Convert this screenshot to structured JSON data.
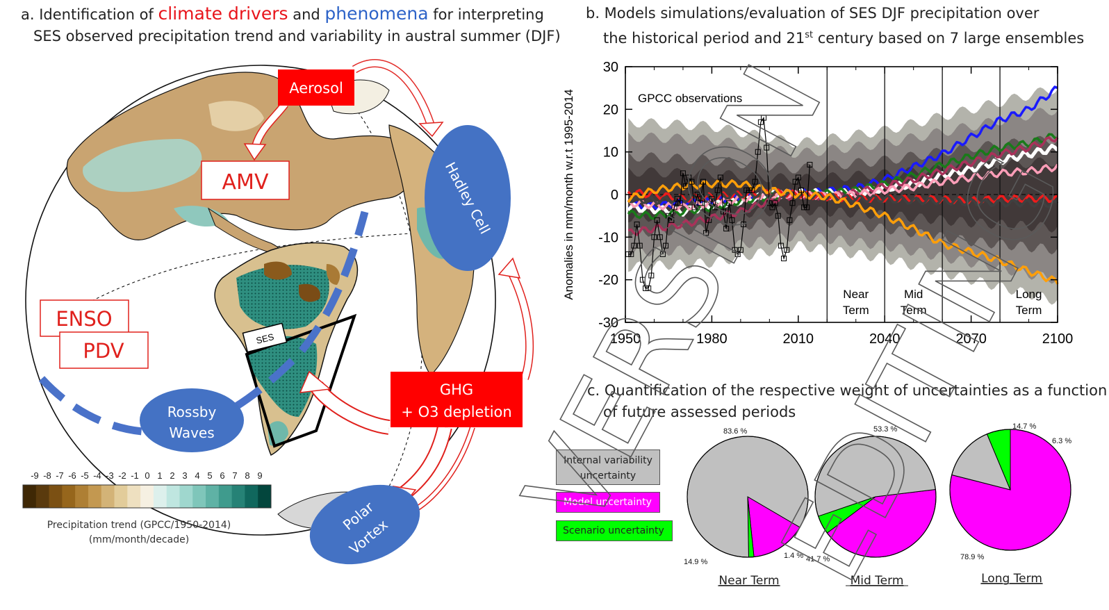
{
  "panel_a": {
    "title_line1_pre": "a. Identification of ",
    "title_drivers": "climate drivers",
    "title_mid": " and ",
    "title_phenomena": "phenomena",
    "title_line1_post": " for interpreting",
    "title_line2": "SES observed precipitation trend and variability in austral summer (DJF)",
    "drivers": [
      "Aerosol",
      "AMV",
      "ENSO",
      "PDV",
      "GHG",
      "+ O3 depletion"
    ],
    "phenomena": [
      "Hadley Cell",
      "Rossby",
      "Waves",
      "Polar",
      "Vortex"
    ],
    "region_label": "SES",
    "colorbar": {
      "ticks": [
        "-9",
        "-8",
        "-7",
        "-6",
        "-5",
        "-4",
        "-3",
        "-2",
        "-1",
        "0",
        "1",
        "2",
        "3",
        "4",
        "5",
        "6",
        "7",
        "8",
        "9"
      ],
      "colors": [
        "#3f2805",
        "#5a3a0d",
        "#7b5013",
        "#96661c",
        "#ae7f34",
        "#c39850",
        "#d3b377",
        "#e2cc9a",
        "#eee0c0",
        "#f6f0e2",
        "#ddf0ec",
        "#bfe6e0",
        "#9fd7ce",
        "#7fc6ba",
        "#5fb2a5",
        "#3f9b8d",
        "#268276",
        "#10675d",
        "#03463d"
      ],
      "label1": "Precipitation trend (GPCC/1950-2014)",
      "label2": "(mm/month/decade)"
    }
  },
  "panel_b": {
    "title_line1": "b. Models simulations/evaluation of SES DJF precipitation over",
    "title_line2_pre": "the historical period and 21",
    "title_line2_sup": "st",
    "title_line2_post": " century based on 7 large ensembles",
    "obs_label": "GPCC observations",
    "ylabel": "Anomalies in mm/month w.r.t 1995-2014",
    "term_labels": [
      [
        "Near",
        "Term"
      ],
      [
        "Mid",
        "Term"
      ],
      [
        "Long",
        "Term"
      ]
    ]
  },
  "panel_c": {
    "title_line1": "c. Quantification of the respective weight of uncertainties as a function",
    "title_line2": "of future assessed periods",
    "legend": [
      "Internal variability",
      "uncertainty",
      "Model uncertainty",
      "Scenario uncertainty"
    ],
    "pies": [
      {
        "name": "Near Term",
        "internal": 83.6,
        "model": 14.9,
        "scenario": 1.4,
        "labels": [
          "83.6  %",
          "14.9  %",
          "1.4  %"
        ]
      },
      {
        "name": "Mid Term",
        "internal": 53.3,
        "model": 41.7,
        "scenario": 5.0,
        "labels": [
          "53.3  %",
          "41.7  %"
        ]
      },
      {
        "name": "Long Term",
        "internal": 14.7,
        "model": 78.9,
        "scenario": 6.3,
        "labels": [
          "14.7  %",
          "78.9  %",
          "6.3  %"
        ]
      }
    ],
    "colors": {
      "internal": "#c0c0c0",
      "model": "#ff00ff",
      "scenario": "#00ff00"
    }
  },
  "chart_data": {
    "type": "line",
    "title": "GPCC observations",
    "xlabel": "",
    "ylabel": "Anomalies in mm/month w.r.t 1995-2014",
    "xlim": [
      1950,
      2100
    ],
    "ylim": [
      -30,
      30
    ],
    "xticks": [
      1950,
      1980,
      2010,
      2040,
      2070,
      2100
    ],
    "yticks": [
      -30,
      -20,
      -10,
      0,
      10,
      20,
      30
    ],
    "grid": false,
    "vlines": [
      2020,
      2040,
      2060,
      2080
    ],
    "observations": {
      "x": [
        1951,
        1952,
        1953,
        1954,
        1955,
        1956,
        1957,
        1958,
        1959,
        1960,
        1961,
        1962,
        1963,
        1964,
        1965,
        1966,
        1967,
        1968,
        1969,
        1970,
        1971,
        1972,
        1973,
        1974,
        1975,
        1976,
        1977,
        1978,
        1979,
        1980,
        1981,
        1982,
        1983,
        1984,
        1985,
        1986,
        1987,
        1988,
        1989,
        1990,
        1991,
        1992,
        1993,
        1994,
        1995,
        1996,
        1997,
        1998,
        1999,
        2000,
        2001,
        2002,
        2003,
        2004,
        2005,
        2006,
        2007,
        2008,
        2009,
        2010,
        2011,
        2012,
        2013,
        2014
      ],
      "y": [
        -14,
        -14,
        -12,
        -7,
        -12,
        -20,
        -22,
        -22,
        -19,
        -10,
        -6,
        -10,
        -14,
        -12,
        -5,
        -6,
        -3,
        -1,
        -2,
        5,
        2,
        4,
        3,
        -3,
        0,
        -2,
        3,
        -9,
        -6,
        -1,
        -3,
        1,
        4,
        -4,
        -8,
        -2,
        -6,
        -13,
        -14,
        -13,
        -7,
        1,
        1,
        1,
        3,
        10,
        17,
        18,
        11,
        -2,
        -3,
        -2,
        -5,
        -12,
        -15,
        -13,
        -6,
        -2,
        3,
        4,
        1,
        -3,
        -3,
        7
      ]
    },
    "series": [
      {
        "name": "",
        "color": "#1a1aff",
        "x": [
          1951,
          1960,
          1970,
          1980,
          1990,
          2000,
          2010,
          2020,
          2030,
          2040,
          2050,
          2060,
          2070,
          2080,
          2090,
          2100
        ],
        "y": [
          -2.5,
          -2.8,
          -1.8,
          -1.5,
          -0.8,
          0.2,
          0.3,
          0.8,
          1.5,
          3.5,
          6.5,
          9.5,
          13.5,
          17.5,
          20,
          25
        ]
      },
      {
        "name": "",
        "color": "#ffffff",
        "x": [
          1951,
          1960,
          1970,
          1980,
          1990,
          2000,
          2010,
          2020,
          2030,
          2040,
          2050,
          2060,
          2070,
          2080,
          2090,
          2100
        ],
        "y": [
          -3,
          -3.5,
          -4,
          -2.5,
          -1.5,
          0,
          0.3,
          0.3,
          0.5,
          1.5,
          2.5,
          4.5,
          6,
          8,
          9.5,
          11
        ]
      },
      {
        "name": "",
        "color": "#1a7a1a",
        "x": [
          1951,
          1960,
          1970,
          1980,
          1990,
          2000,
          2010,
          2020,
          2030,
          2040,
          2050,
          2060,
          2070,
          2080,
          2090,
          2100
        ],
        "y": [
          -4.5,
          -5,
          -4,
          -3,
          -1.5,
          -0.5,
          0,
          0.3,
          1,
          2.5,
          4.5,
          7,
          9,
          11,
          12,
          14
        ]
      },
      {
        "name": "",
        "color": "#a8325a",
        "x": [
          1951,
          1960,
          1970,
          1980,
          1990,
          2000,
          2010,
          2020,
          2030,
          2040,
          2050,
          2060,
          2070,
          2080,
          2090,
          2100
        ],
        "y": [
          -9,
          -8,
          -7,
          -5.5,
          -4,
          -1.5,
          0,
          -0.5,
          0.5,
          2,
          3.5,
          5.5,
          7.5,
          9.5,
          11,
          13.5
        ]
      },
      {
        "name": "",
        "color": "#ff9eb8",
        "x": [
          1951,
          1960,
          1970,
          1980,
          1990,
          2000,
          2010,
          2020,
          2030,
          2040,
          2050,
          2060,
          2070,
          2080,
          2090,
          2100
        ],
        "y": [
          -2,
          -2.5,
          -3,
          -2,
          -1,
          0,
          0,
          -0.3,
          0,
          1,
          1.8,
          3,
          4,
          5,
          5.5,
          6.5
        ]
      },
      {
        "name": "",
        "color": "#ee1c1c",
        "x": [
          1951,
          1960,
          1970,
          1980,
          1990,
          2000,
          2010,
          2020,
          2030,
          2040,
          2050,
          2060,
          2070,
          2080,
          2090,
          2100
        ],
        "y": [
          0.5,
          0,
          -1,
          -0.5,
          0,
          0.5,
          0,
          -0.5,
          -1,
          -1,
          -1,
          -1.2,
          -1.5,
          -1,
          -1,
          -1
        ]
      },
      {
        "name": "",
        "color": "#404040",
        "x": [
          1951,
          1960,
          1970,
          1980,
          1990,
          2000,
          2010,
          2020,
          2030,
          2040,
          2050,
          2060,
          2070,
          2080,
          2090,
          2100
        ],
        "y": [
          -1,
          -1.5,
          -1,
          -0.5,
          0,
          0,
          0,
          -0.5,
          -1,
          -1,
          -1.5,
          -1.5,
          -1.8,
          -2,
          -2,
          -2.3
        ]
      },
      {
        "name": "",
        "color": "#ff9f0a",
        "x": [
          1951,
          1960,
          1970,
          1980,
          1990,
          2000,
          2010,
          2020,
          2030,
          2040,
          2050,
          2060,
          2070,
          2080,
          2090,
          2100
        ],
        "y": [
          -1,
          1,
          2,
          2.5,
          2.5,
          1,
          0,
          -0.5,
          -2.5,
          -5,
          -8,
          -11.5,
          -13.5,
          -15.5,
          -18,
          -20.5
        ]
      }
    ],
    "bands_y_half_width": {
      "x": [
        1951,
        1980,
        2010,
        2040,
        2070,
        2100
      ],
      "outer": [
        17,
        16,
        12,
        15,
        20,
        25
      ],
      "inner": [
        9,
        8,
        6,
        8,
        11,
        13
      ]
    }
  }
}
